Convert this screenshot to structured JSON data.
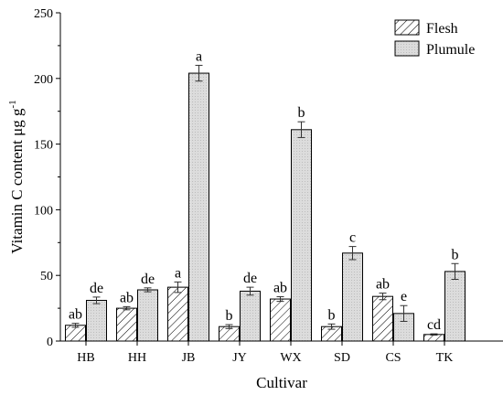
{
  "chart_data": {
    "type": "bar",
    "xlabel": "Cultivar",
    "ylabel": "Vitamin C content μg g",
    "ylabel_sup": "-1",
    "ylim": [
      0,
      250
    ],
    "yticks": [
      0,
      50,
      100,
      150,
      200,
      250
    ],
    "grid": false,
    "legend_position": "top-right",
    "categories": [
      "HB",
      "HH",
      "JB",
      "JY",
      "WX",
      "SD",
      "CS",
      "TK"
    ],
    "series": [
      {
        "name": "Flesh",
        "pattern": "diagonal-hatch",
        "fill": "#ffffff",
        "values": [
          12,
          25,
          41,
          11,
          32,
          11,
          34,
          5
        ],
        "errors": [
          1.5,
          1.2,
          4,
          1.5,
          1.8,
          2,
          2.5,
          0.5
        ],
        "labels": [
          "ab",
          "ab",
          "a",
          "b",
          "ab",
          "b",
          "ab",
          "cd"
        ]
      },
      {
        "name": "Plumule",
        "pattern": "solid-gray",
        "fill": "#d9d9d9",
        "values": [
          31,
          39,
          204,
          38,
          161,
          67,
          21,
          53
        ],
        "errors": [
          2.5,
          1.5,
          6,
          3,
          6,
          5,
          6,
          6
        ],
        "labels": [
          "de",
          "de",
          "a",
          "de",
          "b",
          "c",
          "e",
          "b"
        ]
      }
    ]
  }
}
